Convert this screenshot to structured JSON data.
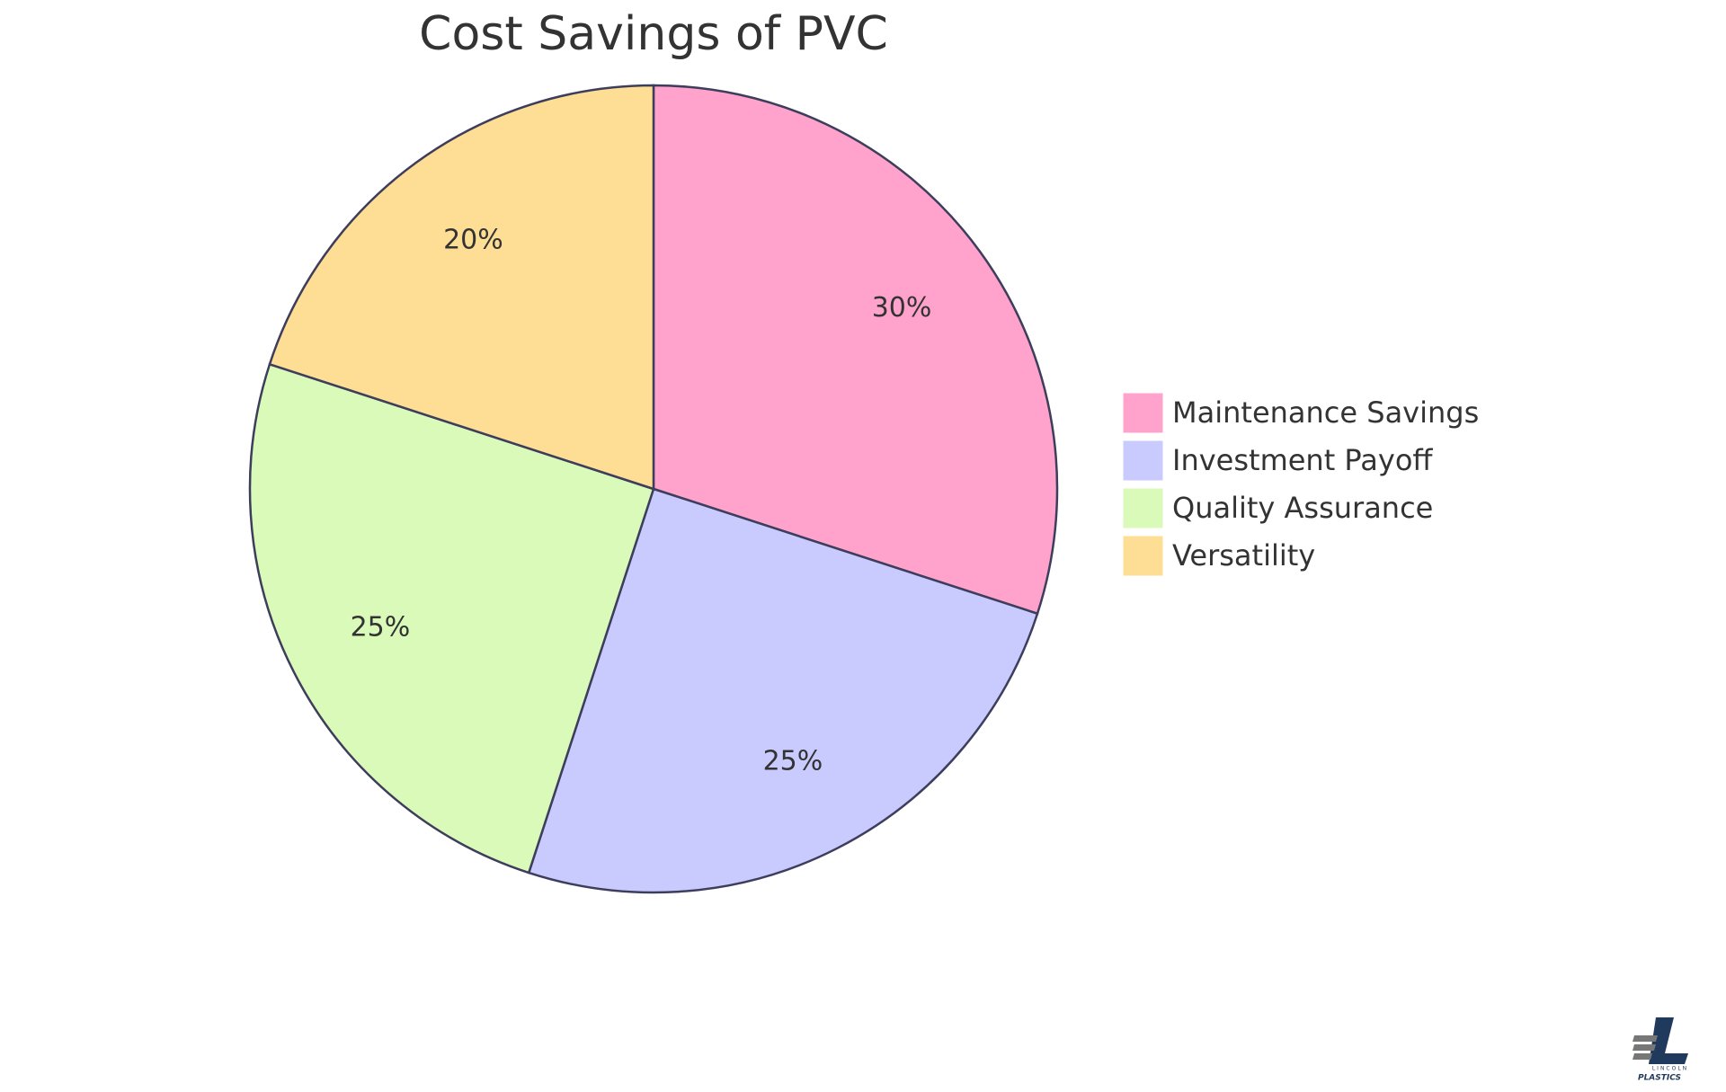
{
  "chart_data": {
    "type": "pie",
    "title": "Cost Savings of PVC",
    "categories": [
      "Maintenance Savings",
      "Investment Payoff",
      "Quality Assurance",
      "Versatility"
    ],
    "values": [
      30,
      25,
      25,
      20
    ],
    "value_labels": [
      "30%",
      "25%",
      "25%",
      "20%"
    ],
    "colors": [
      "#ffa3cd",
      "#c9cbff",
      "#dafab9",
      "#fedd94"
    ],
    "legend": "right"
  },
  "logo": {
    "line1": "LINCOLN",
    "line2": "PLASTICS"
  }
}
